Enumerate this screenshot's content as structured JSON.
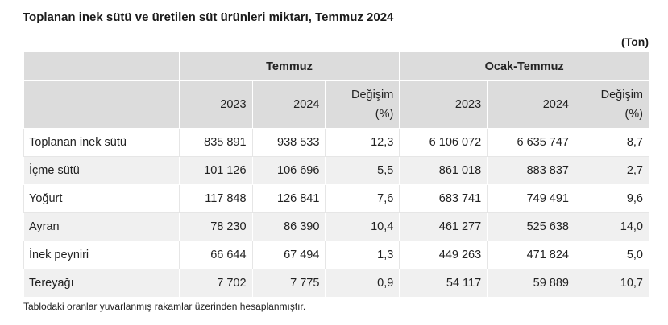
{
  "title": "Toplanan inek sütü ve üretilen süt ürünleri miktarı, Temmuz 2024",
  "unit": "(Ton)",
  "headers": {
    "group_temmuz": "Temmuz",
    "group_ocak_temmuz": "Ocak-Temmuz",
    "y2023": "2023",
    "y2024": "2024",
    "change_line1": "Değişim",
    "change_line2": "(%)"
  },
  "rows": [
    {
      "label": "Toplanan inek sütü",
      "t2023": "835 891",
      "t2024": "938 533",
      "tchg": "12,3",
      "o2023": "6 106 072",
      "o2024": "6 635 747",
      "ochg": "8,7"
    },
    {
      "label": "İçme sütü",
      "t2023": "101 126",
      "t2024": "106 696",
      "tchg": "5,5",
      "o2023": "861 018",
      "o2024": "883 837",
      "ochg": "2,7"
    },
    {
      "label": "Yoğurt",
      "t2023": "117 848",
      "t2024": "126 841",
      "tchg": "7,6",
      "o2023": "683 741",
      "o2024": "749 491",
      "ochg": "9,6"
    },
    {
      "label": "Ayran",
      "t2023": "78 230",
      "t2024": "86 390",
      "tchg": "10,4",
      "o2023": "461 277",
      "o2024": "525 638",
      "ochg": "14,0"
    },
    {
      "label": "İnek peyniri",
      "t2023": "66 644",
      "t2024": "67 494",
      "tchg": "1,3",
      "o2023": "449 263",
      "o2024": "471 824",
      "ochg": "5,0"
    },
    {
      "label": "Tereyağı",
      "t2023": "7 702",
      "t2024": "7 775",
      "tchg": "0,9",
      "o2023": "54 117",
      "o2024": "59 889",
      "ochg": "10,7"
    }
  ],
  "note": "Tablodaki oranlar yuvarlanmış rakamlar üzerinden hesaplanmıştır."
}
